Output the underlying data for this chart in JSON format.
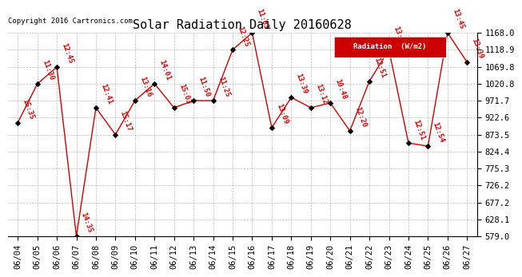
{
  "title": "Solar Radiation Daily 20160628",
  "copyright": "Copyright 2016 Cartronics.com",
  "legend_label": "Radiation  (W/m2)",
  "dates": [
    "06/04",
    "06/05",
    "06/06",
    "06/07",
    "06/08",
    "06/09",
    "06/10",
    "06/11",
    "06/12",
    "06/13",
    "06/14",
    "06/15",
    "06/16",
    "06/17",
    "06/18",
    "06/19",
    "06/20",
    "06/21",
    "06/22",
    "06/23",
    "06/24",
    "06/25",
    "06/26",
    "06/27"
  ],
  "values": [
    908.0,
    1020.0,
    1069.0,
    579.0,
    951.0,
    873.5,
    971.7,
    1020.8,
    951.0,
    971.7,
    971.7,
    1118.9,
    1168.0,
    893.0,
    981.0,
    951.0,
    965.0,
    884.0,
    1028.0,
    1118.9,
    849.0,
    840.0,
    1168.0,
    1083.0
  ],
  "labels": [
    "15:35",
    "11:30",
    "12:45",
    "14:35",
    "12:41",
    "15:17",
    "13:16",
    "14:01",
    "15:03",
    "11:50",
    "11:25",
    "12:25",
    "11:03",
    "13:09",
    "13:39",
    "13:12",
    "10:48",
    "12:20",
    "12:51",
    "13:45",
    "12:51",
    "12:54",
    "13:45",
    "13:39"
  ],
  "ylim_min": 579.0,
  "ylim_max": 1168.0,
  "yticks": [
    579.0,
    628.1,
    677.2,
    726.2,
    775.3,
    824.4,
    873.5,
    922.6,
    971.7,
    1020.8,
    1069.8,
    1118.9,
    1168.0
  ],
  "line_color": "#cc0000",
  "marker_color": "#000000",
  "background_color": "#ffffff",
  "grid_color": "#aaaaaa",
  "title_fontsize": 11,
  "label_fontsize": 6.5,
  "tick_fontsize": 7.5,
  "legend_bg": "#cc0000",
  "legend_fg": "#ffffff"
}
